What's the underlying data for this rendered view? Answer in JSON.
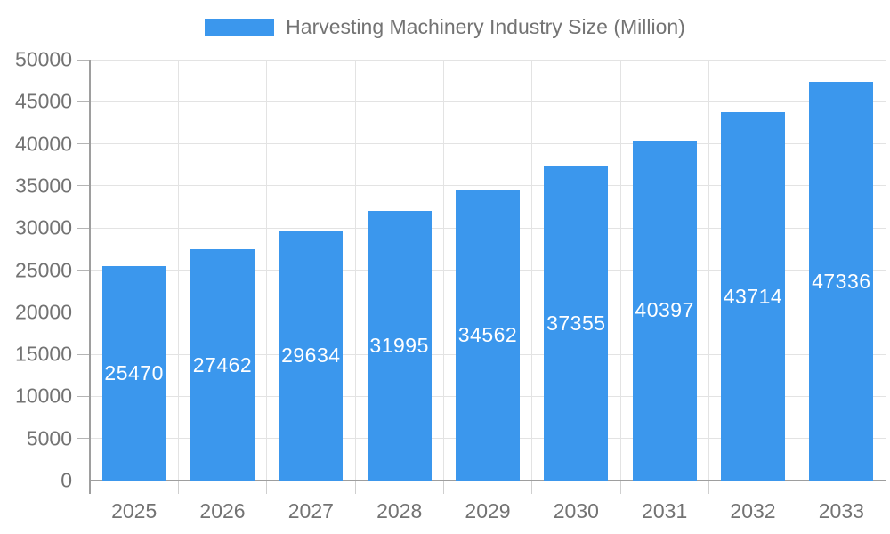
{
  "legend": {
    "label": "Harvesting Machinery Industry Size (Million)"
  },
  "chart_data": {
    "type": "bar",
    "title": "Harvesting Machinery Industry Size (Million)",
    "categories": [
      "2025",
      "2026",
      "2027",
      "2028",
      "2029",
      "2030",
      "2031",
      "2032",
      "2033"
    ],
    "series": [
      {
        "name": "Harvesting Machinery Industry Size (Million)",
        "values": [
          25470,
          27462,
          29634,
          31995,
          34562,
          37355,
          40397,
          43714,
          47336
        ]
      }
    ],
    "value_labels_visible": true,
    "xlabel": "",
    "ylabel": "",
    "ylim": [
      0,
      50000
    ],
    "yticks": [
      0,
      5000,
      10000,
      15000,
      20000,
      25000,
      30000,
      35000,
      40000,
      45000,
      50000
    ],
    "grid": true,
    "legend_position": "top",
    "colors": {
      "bar": "#3B97ED",
      "value_label": "#FFFFFF",
      "axis_text": "#737373",
      "grid_line": "#E3E3E3",
      "axis_line": "#9E9E9E",
      "tick_minor": "#CFCFCF",
      "tick_major": "#B5B5B5",
      "background": "#FFFFFF"
    }
  }
}
